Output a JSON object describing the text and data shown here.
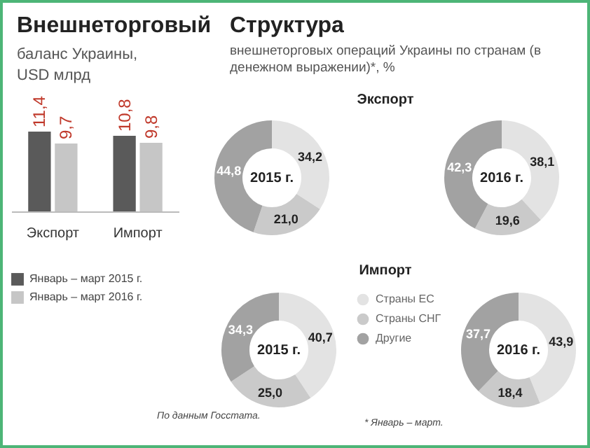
{
  "chart_data": [
    {
      "type": "bar",
      "title": "Внешнеторговый",
      "subtitle": "баланс Украины, USD млрд",
      "categories": [
        "Экспорт",
        "Импорт"
      ],
      "legend": "bottom",
      "annotations": [
        "По данным Госстата."
      ],
      "series": [
        {
          "name": "Январь – март 2015 г.",
          "color": "#5a5a5a",
          "values": [
            11.4,
            10.8
          ],
          "value_labels": [
            "11,4",
            "10,8"
          ]
        },
        {
          "name": "Январь – март 2016 г.",
          "color": "#c6c6c6",
          "values": [
            9.7,
            9.8
          ],
          "value_labels": [
            "9,7",
            "9,8"
          ]
        }
      ]
    },
    {
      "type": "other",
      "title": "Структура",
      "subtitle": "внешнеторговых операций Украины по странам (в денежном выражении)*, %"
    },
    {
      "type": "donut",
      "title": "2015 г.",
      "annotations": [
        "Экспорт"
      ],
      "categories": [
        null,
        null,
        null
      ],
      "values": [
        34.2,
        21.0,
        44.8
      ],
      "value_labels": [
        "34,2",
        "21,0",
        "44,8"
      ],
      "colors": [
        "#e3e3e3",
        "#cacaca",
        "#a2a2a2"
      ]
    },
    {
      "type": "donut",
      "title": "2016 г.",
      "categories": [
        null,
        null,
        null
      ],
      "values": [
        38.1,
        19.6,
        42.3
      ],
      "value_labels": [
        "38,1",
        "19,6",
        "42,3"
      ],
      "colors": [
        "#e3e3e3",
        "#cacaca",
        "#a2a2a2"
      ]
    },
    {
      "type": "donut",
      "title": "2015 г.",
      "annotations": [
        "Импорт"
      ],
      "legend": "right",
      "categories": [
        "Страны ЕС",
        "Страны СНГ",
        "Другие"
      ],
      "values": [
        40.7,
        25.0,
        34.3
      ],
      "value_labels": [
        "40,7",
        "25,0",
        "34,3"
      ],
      "colors": [
        "#e3e3e3",
        "#cacaca",
        "#a2a2a2"
      ]
    },
    {
      "type": "donut",
      "title": "2016 г.",
      "annotations": [
        "* Январь – март."
      ],
      "categories": [
        null,
        null,
        null
      ],
      "values": [
        43.9,
        18.4,
        37.7
      ],
      "value_labels": [
        "43,9",
        "18,4",
        "37,7"
      ],
      "colors": [
        "#e3e3e3",
        "#cacaca",
        "#a2a2a2"
      ]
    }
  ]
}
